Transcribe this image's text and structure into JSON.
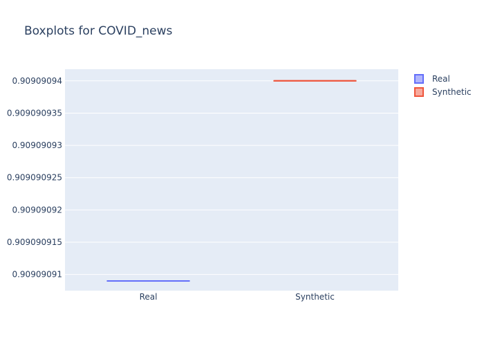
{
  "chart_data": {
    "type": "box",
    "title": "Boxplots for COVID_news",
    "xlabel": "",
    "ylabel": "",
    "categories": [
      "Real",
      "Synthetic"
    ],
    "series": [
      {
        "name": "Real",
        "category": "Real",
        "min": 0.909090909,
        "q1": 0.909090909,
        "median": 0.909090909,
        "q3": 0.909090909,
        "max": 0.909090909,
        "color": "#636efa",
        "fill": "#b1b6fc"
      },
      {
        "name": "Synthetic",
        "category": "Synthetic",
        "min": 0.90909094,
        "q1": 0.90909094,
        "median": 0.90909094,
        "q3": 0.90909094,
        "max": 0.90909094,
        "color": "#ef553b",
        "fill": "#f7aa9d"
      }
    ],
    "ylim": [
      0.9090909075,
      0.9090909418
    ],
    "yticks": [
      0.90909091,
      0.909090915,
      0.90909092,
      0.909090925,
      0.90909093,
      0.909090935,
      0.90909094
    ],
    "ytick_labels": [
      "0.90909091",
      "0.909090915",
      "0.90909092",
      "0.909090925",
      "0.90909093",
      "0.909090935",
      "0.90909094"
    ],
    "grid": true,
    "legend": "top-right",
    "plot_bg": "#e5ecf6",
    "grid_color": "#ffffff"
  }
}
